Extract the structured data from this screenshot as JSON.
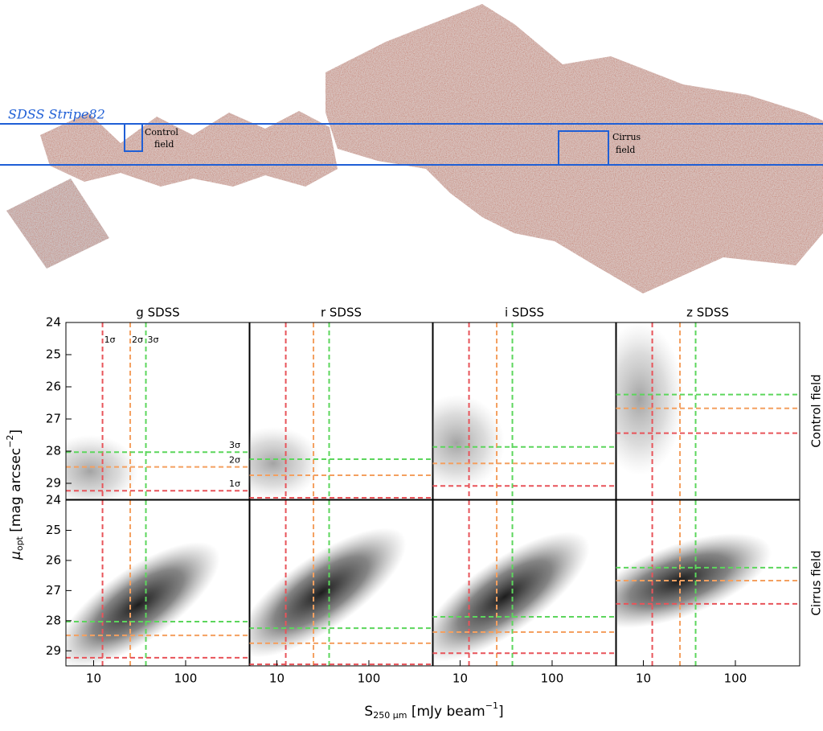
{
  "map": {
    "survey_label": "SDSS Stripe82",
    "control_label": [
      "Control",
      "field"
    ],
    "cirrus_label": [
      "Cirrus",
      "field"
    ]
  },
  "x_label": {
    "base": "S",
    "sub": "250 μm",
    "text": " [mJy beam",
    "sup": "−1",
    "end": "]"
  },
  "y_label": {
    "base": "μ",
    "sub": "opt",
    "text": " [mag arcsec",
    "sup": "−2",
    "end": "]"
  },
  "chart_data": [
    {
      "type": "scatter",
      "title": "g SDSS",
      "log_x": true,
      "xlim": [
        5,
        500
      ],
      "ylim": [
        29.5,
        24
      ],
      "yticks": [
        24,
        25,
        26,
        27,
        28,
        29
      ],
      "vlines": {
        "values": [
          12.5,
          25,
          37
        ],
        "colors": [
          "#e8545a",
          "#f4a060",
          "#5cd65c"
        ],
        "labels": [
          "1σ",
          "2σ",
          "3σ"
        ]
      },
      "hlines": {
        "values": [
          29.23,
          28.49,
          28.03
        ],
        "colors": [
          "#e8545a",
          "#f4a060",
          "#5cd65c"
        ],
        "labels": [
          "1σ",
          "2σ",
          "3σ"
        ]
      }
    },
    {
      "type": "scatter",
      "title": "r SDSS",
      "log_x": true,
      "xlim": [
        5,
        500
      ],
      "ylim": [
        29.5,
        24
      ],
      "vlines": {
        "values": [
          12.5,
          25,
          37
        ],
        "colors": [
          "#e8545a",
          "#f4a060",
          "#5cd65c"
        ]
      },
      "hlines": {
        "values": [
          29.45,
          28.75,
          28.25
        ],
        "colors": [
          "#e8545a",
          "#f4a060",
          "#5cd65c"
        ]
      }
    },
    {
      "type": "scatter",
      "title": "i SDSS",
      "log_x": true,
      "xlim": [
        5,
        500
      ],
      "ylim": [
        29.5,
        24
      ],
      "vlines": {
        "values": [
          12.5,
          25,
          37
        ],
        "colors": [
          "#e8545a",
          "#f4a060",
          "#5cd65c"
        ]
      },
      "hlines": {
        "values": [
          29.08,
          28.38,
          27.87
        ],
        "colors": [
          "#e8545a",
          "#f4a060",
          "#5cd65c"
        ]
      }
    },
    {
      "type": "scatter",
      "title": "z SDSS",
      "row_label": "Control field",
      "log_x": true,
      "xlim": [
        5,
        500
      ],
      "ylim": [
        29.5,
        24
      ],
      "vlines": {
        "values": [
          12.5,
          25,
          37
        ],
        "colors": [
          "#e8545a",
          "#f4a060",
          "#5cd65c"
        ]
      },
      "hlines": {
        "values": [
          27.44,
          26.67,
          26.24
        ],
        "colors": [
          "#e8545a",
          "#f4a060",
          "#5cd65c"
        ]
      }
    },
    {
      "type": "scatter",
      "log_x": true,
      "xlim": [
        5,
        500
      ],
      "ylim": [
        29.5,
        24
      ],
      "xticks": [
        10,
        100
      ],
      "yticks": [
        24,
        25,
        26,
        27,
        28,
        29
      ],
      "vlines": {
        "values": [
          12.5,
          25,
          37
        ],
        "colors": [
          "#e8545a",
          "#f4a060",
          "#5cd65c"
        ]
      },
      "hlines": {
        "values": [
          29.23,
          28.49,
          28.03
        ],
        "colors": [
          "#e8545a",
          "#f4a060",
          "#5cd65c"
        ]
      }
    },
    {
      "type": "scatter",
      "log_x": true,
      "xlim": [
        5,
        500
      ],
      "ylim": [
        29.5,
        24
      ],
      "xticks": [
        10,
        100
      ],
      "vlines": {
        "values": [
          12.5,
          25,
          37
        ],
        "colors": [
          "#e8545a",
          "#f4a060",
          "#5cd65c"
        ]
      },
      "hlines": {
        "values": [
          29.45,
          28.75,
          28.25
        ],
        "colors": [
          "#e8545a",
          "#f4a060",
          "#5cd65c"
        ]
      }
    },
    {
      "type": "scatter",
      "log_x": true,
      "xlim": [
        5,
        500
      ],
      "ylim": [
        29.5,
        24
      ],
      "xticks": [
        10,
        100
      ],
      "vlines": {
        "values": [
          12.5,
          25,
          37
        ],
        "colors": [
          "#e8545a",
          "#f4a060",
          "#5cd65c"
        ]
      },
      "hlines": {
        "values": [
          29.08,
          28.38,
          27.87
        ],
        "colors": [
          "#e8545a",
          "#f4a060",
          "#5cd65c"
        ]
      }
    },
    {
      "type": "scatter",
      "row_label": "Cirrus field",
      "log_x": true,
      "xlim": [
        5,
        500
      ],
      "ylim": [
        29.5,
        24
      ],
      "xticks": [
        10,
        100
      ],
      "vlines": {
        "values": [
          12.5,
          25,
          37
        ],
        "colors": [
          "#e8545a",
          "#f4a060",
          "#5cd65c"
        ]
      },
      "hlines": {
        "values": [
          27.44,
          26.67,
          26.24
        ],
        "colors": [
          "#e8545a",
          "#f4a060",
          "#5cd65c"
        ]
      }
    }
  ]
}
